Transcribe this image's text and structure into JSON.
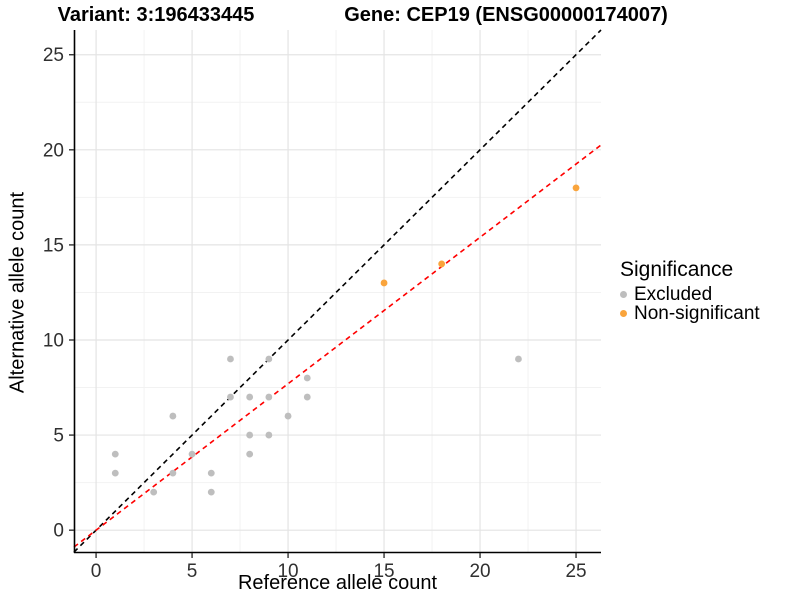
{
  "titles": {
    "left": "Variant: 3:196433445",
    "right": "Gene: CEP19 (ENSG00000174007)"
  },
  "chart_data": {
    "type": "scatter",
    "xlabel": "Reference allele count",
    "ylabel": "Alternative allele count",
    "x_ticks": [
      0,
      5,
      10,
      15,
      20,
      25
    ],
    "y_ticks": [
      0,
      5,
      10,
      15,
      20,
      25
    ],
    "x_range": [
      -1.15,
      26.3
    ],
    "y_range": [
      -1.2,
      26.3
    ],
    "grid": true,
    "legend_position": "right",
    "series": [
      {
        "name": "Excluded",
        "color": "#BEBEBE",
        "points": [
          [
            1,
            3
          ],
          [
            1,
            4
          ],
          [
            3,
            2
          ],
          [
            4,
            3
          ],
          [
            4,
            6
          ],
          [
            5,
            4
          ],
          [
            6,
            2
          ],
          [
            6,
            3
          ],
          [
            7,
            7
          ],
          [
            7,
            9
          ],
          [
            8,
            4
          ],
          [
            8,
            5
          ],
          [
            8,
            7
          ],
          [
            9,
            5
          ],
          [
            9,
            7
          ],
          [
            9,
            9
          ],
          [
            10,
            6
          ],
          [
            11,
            7
          ],
          [
            11,
            8
          ],
          [
            22,
            9
          ]
        ]
      },
      {
        "name": "Non-significant",
        "color": "#F9A43C",
        "points": [
          [
            15,
            13
          ],
          [
            18,
            14
          ],
          [
            25,
            18
          ]
        ]
      }
    ],
    "lines": [
      {
        "name": "identity-line",
        "color": "#000000",
        "slope": 1.0,
        "intercept": 0,
        "dash": "5,4"
      },
      {
        "name": "fit-line",
        "color": "#FF0000",
        "slope": 0.77,
        "intercept": 0,
        "dash": "5,4"
      }
    ]
  },
  "legend": {
    "title": "Significance",
    "items": [
      {
        "label": "Excluded",
        "color": "#BEBEBE"
      },
      {
        "label": "Non-significant",
        "color": "#F9A43C"
      }
    ]
  },
  "style": {
    "grid_major_color": "#E4E4E4",
    "grid_minor_color": "#F2F2F2",
    "axis_line_color": "#000000",
    "tick_label_color": "#303030",
    "tick_label_size": 19
  }
}
